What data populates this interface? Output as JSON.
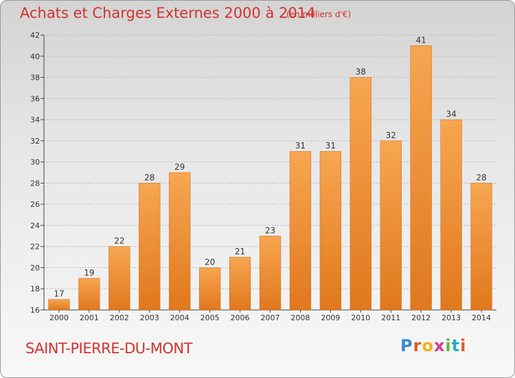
{
  "header": {
    "title": "Achats et Charges Externes 2000 à 2014",
    "subtitle": "(en milliers d'€)"
  },
  "footer": {
    "commune": "SAINT-PIERRE-DU-MONT",
    "logo": "Proxiti"
  },
  "colors": {
    "title": "#d2332d",
    "bar_light": "#f7a651",
    "bar_dark": "#e0781d"
  },
  "chart_data": {
    "type": "bar",
    "title": "Achats et Charges Externes 2000 à 2014",
    "subtitle": "(en milliers d'€)",
    "categories": [
      "2000",
      "2001",
      "2002",
      "2003",
      "2004",
      "2005",
      "2006",
      "2007",
      "2008",
      "2009",
      "2010",
      "2011",
      "2012",
      "2013",
      "2014"
    ],
    "values": [
      17,
      19,
      22,
      28,
      29,
      20,
      21,
      23,
      31,
      31,
      38,
      32,
      41,
      34,
      28
    ],
    "ylim": [
      16,
      42
    ],
    "yticks": [
      16,
      18,
      20,
      22,
      24,
      26,
      28,
      30,
      32,
      34,
      36,
      38,
      40,
      42
    ],
    "grid": true,
    "data_labels": true
  }
}
